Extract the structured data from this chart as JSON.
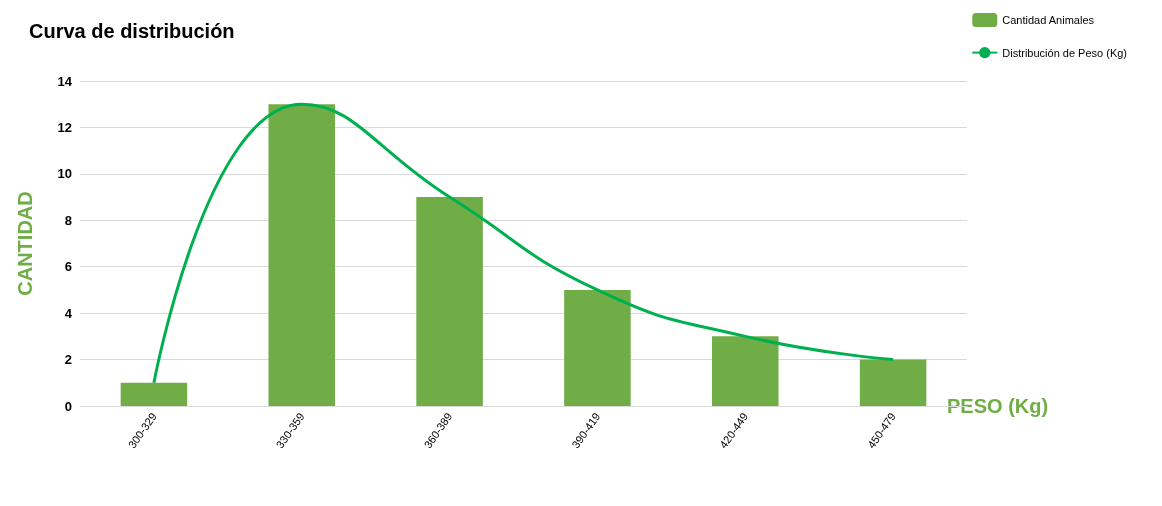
{
  "chart_data": {
    "type": "bar",
    "title": "Curva de distribución",
    "xlabel": "PESO (Kg)",
    "ylabel": "CANTIDAD",
    "categories": [
      "300-329",
      "330-359",
      "360-389",
      "390-419",
      "420-449",
      "450-479"
    ],
    "series": [
      {
        "name": "Cantidad Animales",
        "color": "#70ad47",
        "values": [
          1,
          13,
          9,
          5,
          3,
          2
        ]
      },
      {
        "name": "Distribución de Peso (Kg)",
        "type": "line",
        "color": "#00b050",
        "values": [
          1,
          13,
          9,
          5,
          3,
          2
        ]
      }
    ],
    "ylim": [
      0,
      14
    ],
    "yticks": [
      0,
      2,
      4,
      6,
      8,
      10,
      12,
      14
    ],
    "grid": "y",
    "legend": "top right",
    "marker": "none"
  }
}
